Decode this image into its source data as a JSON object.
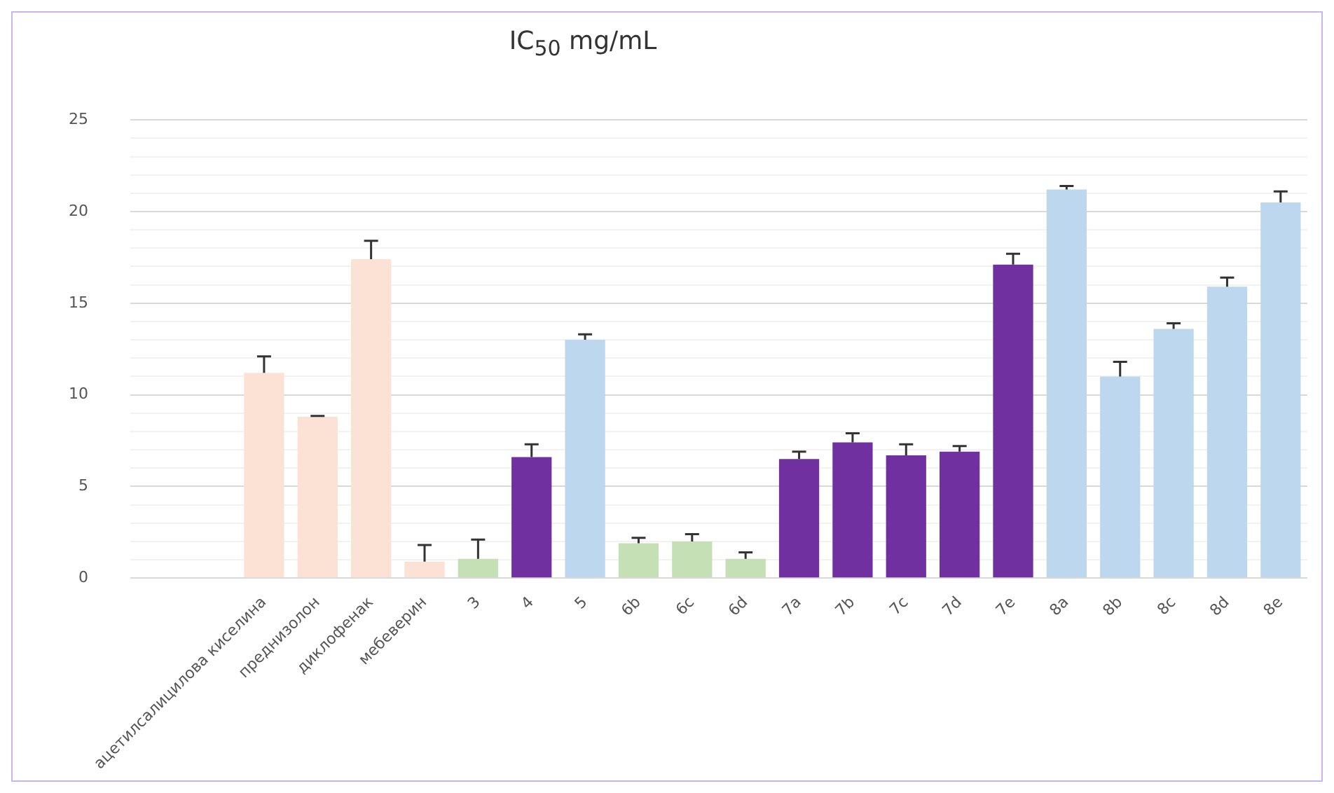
{
  "chart_data": {
    "type": "bar",
    "title": "IC$_{50}$ mg/mL",
    "categories": [
      null,
      null,
      "ацетилсалицилова киселина",
      "преднизолон",
      "диклофенак",
      "мебеверин",
      "3",
      "4",
      "5",
      "6b",
      "6c",
      "6d",
      "7a",
      "7b",
      "7c",
      "7d",
      "7e",
      "8a",
      "8b",
      "8c",
      "8d",
      "8e"
    ],
    "values": [
      null,
      null,
      11.2,
      8.8,
      17.4,
      0.9,
      1.05,
      6.6,
      13.0,
      1.9,
      2.0,
      1.05,
      6.5,
      7.4,
      6.7,
      6.9,
      17.1,
      21.2,
      11.0,
      13.6,
      15.9,
      20.5
    ],
    "errors": [
      null,
      null,
      [
        11.2,
        12.1
      ],
      [
        8.8,
        8.85
      ],
      [
        17.4,
        18.4
      ],
      [
        0.9,
        1.8
      ],
      [
        1.05,
        2.1
      ],
      [
        6.6,
        7.3
      ],
      [
        13.0,
        13.3
      ],
      [
        1.9,
        2.2
      ],
      [
        2.0,
        2.4
      ],
      [
        1.05,
        1.4
      ],
      [
        6.5,
        6.9
      ],
      [
        7.4,
        7.9
      ],
      [
        6.7,
        7.3
      ],
      [
        6.9,
        7.2
      ],
      [
        17.1,
        17.7
      ],
      [
        21.2,
        21.4
      ],
      [
        11.0,
        11.8
      ],
      [
        13.6,
        13.9
      ],
      [
        15.9,
        16.4
      ],
      [
        20.5,
        21.1
      ]
    ],
    "colors": [
      "#fbe2d5",
      "#fbe2d5",
      "#fbe2d5",
      "#fbe2d5",
      "#fbe2d5",
      "#fbe2d5",
      "#c5e0b4",
      "#7030a0",
      "#bdd7ee",
      "#c5e0b4",
      "#c5e0b4",
      "#c5e0b4",
      "#7030a0",
      "#7030a0",
      "#7030a0",
      "#7030a0",
      "#7030a0",
      "#bdd7ee",
      "#bdd7ee",
      "#bdd7ee",
      "#bdd7ee",
      "#bdd7ee"
    ],
    "ylim": [
      0,
      25
    ],
    "yticks": [
      0,
      {
        "value": 1,
        "label": null
      },
      {
        "value": 2,
        "label": null
      },
      {
        "value": 3,
        "label": null
      },
      {
        "value": 4,
        "label": null
      },
      5,
      {
        "value": 6,
        "label": null
      },
      {
        "value": 7,
        "label": null
      },
      {
        "value": 8,
        "label": null
      },
      {
        "value": 9,
        "label": null
      },
      10,
      {
        "value": 11,
        "label": null
      },
      {
        "value": 12,
        "label": null
      },
      {
        "value": 13,
        "label": null
      },
      {
        "value": 14,
        "label": null
      },
      15,
      {
        "value": 16,
        "label": null
      },
      {
        "value": 17,
        "label": null
      },
      {
        "value": 18,
        "label": null
      },
      {
        "value": 19,
        "label": null
      },
      20,
      {
        "value": 21,
        "label": null
      },
      {
        "value": 22,
        "label": null
      },
      {
        "value": 23,
        "label": null
      },
      {
        "value": 24,
        "label": null
      },
      25
    ],
    "grid": "y",
    "legend": false
  }
}
